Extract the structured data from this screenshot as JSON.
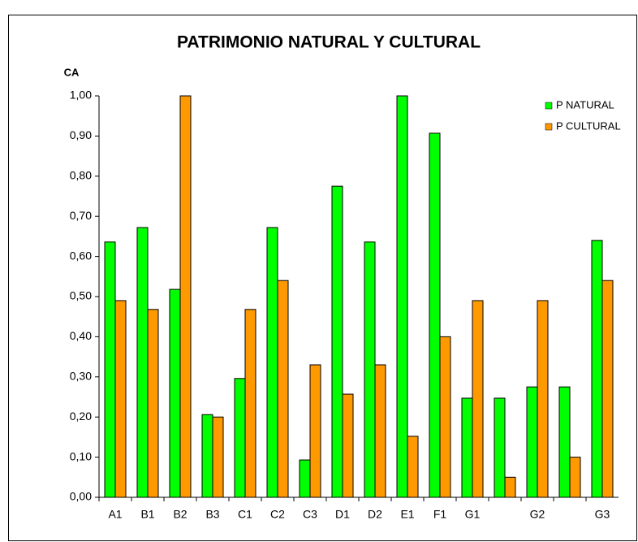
{
  "chart_data": {
    "type": "bar",
    "title": "PATRIMONIO NATURAL Y CULTURAL",
    "y_axis_label": "CA",
    "categories": [
      "A1",
      "B1",
      "B2",
      "B3",
      "C1",
      "C2",
      "C3",
      "D1",
      "D2",
      "E1",
      "F1",
      "G1",
      null,
      "G2",
      null,
      "G3"
    ],
    "series": [
      {
        "name": "P NATURAL",
        "color": "#00ff00",
        "values": [
          0.636,
          0.672,
          0.518,
          0.206,
          0.296,
          0.672,
          0.093,
          0.775,
          0.636,
          1.0,
          0.907,
          0.247,
          0.247,
          0.275,
          0.275,
          0.64
        ]
      },
      {
        "name": "P CULTURAL",
        "color": "#ff9900",
        "values": [
          0.49,
          0.468,
          1.0,
          0.2,
          0.468,
          0.54,
          0.33,
          0.257,
          0.33,
          0.152,
          0.4,
          0.49,
          0.05,
          0.49,
          0.1,
          0.54
        ]
      }
    ],
    "ylim": [
      0,
      1
    ],
    "yticks": [
      {
        "value": 0,
        "label": "0,00"
      },
      {
        "value": 0.1,
        "label": "0,10"
      },
      {
        "value": 0.2,
        "label": "0,20"
      },
      {
        "value": 0.3,
        "label": "0,30"
      },
      {
        "value": 0.4,
        "label": "0,40"
      },
      {
        "value": 0.5,
        "label": "0,50"
      },
      {
        "value": 0.6,
        "label": "0,60"
      },
      {
        "value": 0.7,
        "label": "0,70"
      },
      {
        "value": 0.8,
        "label": "0,80"
      },
      {
        "value": 0.9,
        "label": "0,90"
      },
      {
        "value": 1,
        "label": "1,00"
      }
    ],
    "legend": "top-right"
  }
}
